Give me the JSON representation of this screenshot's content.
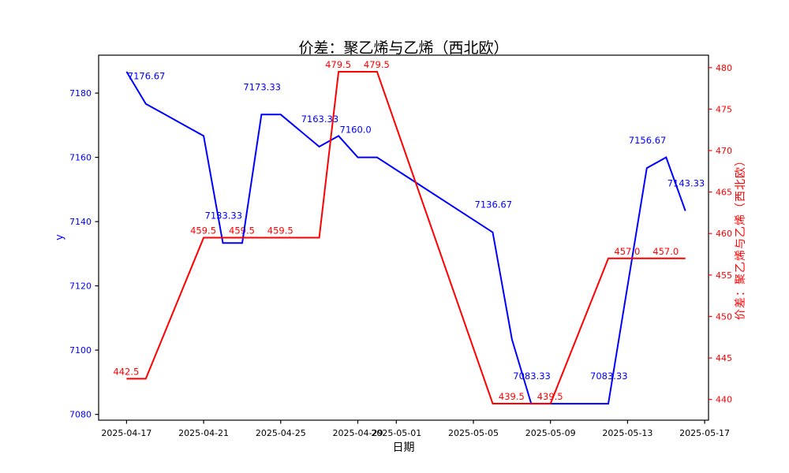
{
  "chart_data": {
    "type": "line",
    "title": "价差：聚乙烯与乙烯（西北欧）",
    "xlabel": "日期",
    "start_date": "2025-04-17",
    "x_axis": {
      "tick_labels": [
        "2025-04-17",
        "2025-04-21",
        "2025-04-25",
        "2025-04-29",
        "2025-05-01",
        "2025-05-05",
        "2025-05-09",
        "2025-05-13",
        "2025-05-17"
      ],
      "xlim_days": [
        -1.45,
        30.2
      ],
      "tick_color": "#000000",
      "label_color": "#000000"
    },
    "left_axis": {
      "label": "y",
      "ticks": [
        7080,
        7100,
        7120,
        7140,
        7160,
        7180
      ],
      "ylim": [
        7078.2,
        7191.8
      ],
      "label_color": "#0000ff",
      "tick_mark_color": "#000000"
    },
    "right_axis": {
      "label": "价差：聚乙烯与乙烯（西北欧）",
      "ticks": [
        440,
        445,
        450,
        455,
        460,
        465,
        470,
        475,
        480
      ],
      "ylim": [
        437.5,
        481.5
      ],
      "label_color": "#ff0000",
      "tick_mark_color": "#ff0000"
    },
    "grid": false,
    "legend": null,
    "series": [
      {
        "name": "y",
        "axis": "left",
        "color": "#0000ff",
        "line_width": 2,
        "points": [
          [
            "2025-04-17",
            7186.67
          ],
          [
            "2025-04-18",
            7176.67
          ],
          [
            "2025-04-19",
            7173.33
          ],
          [
            "2025-04-20",
            7170.0
          ],
          [
            "2025-04-21",
            7166.67
          ],
          [
            "2025-04-22",
            7133.33
          ],
          [
            "2025-04-23",
            7133.33
          ],
          [
            "2025-04-24",
            7173.33
          ],
          [
            "2025-04-25",
            7173.33
          ],
          [
            "2025-04-26",
            7168.33
          ],
          [
            "2025-04-27",
            7163.33
          ],
          [
            "2025-04-28",
            7166.67
          ],
          [
            "2025-04-29",
            7160.0
          ],
          [
            "2025-04-30",
            7160.0
          ],
          [
            "2025-05-06",
            7136.67
          ],
          [
            "2025-05-07",
            7103.33
          ],
          [
            "2025-05-08",
            7083.33
          ],
          [
            "2025-05-12",
            7083.33
          ],
          [
            "2025-05-14",
            7156.67
          ],
          [
            "2025-05-15",
            7160.0
          ],
          [
            "2025-05-16",
            7143.33
          ]
        ],
        "annotations": [
          {
            "date": "2025-04-18",
            "label": "7176.67"
          },
          {
            "date": "2025-04-22",
            "label": "7133.33"
          },
          {
            "date": "2025-04-24",
            "label": "7173.33"
          },
          {
            "date": "2025-04-27",
            "label": "7163.33"
          },
          {
            "date": "2025-04-29",
            "label": "7160.0"
          },
          {
            "date": "2025-05-06",
            "label": "7136.67"
          },
          {
            "date": "2025-05-08",
            "label": "7083.33"
          },
          {
            "date": "2025-05-12",
            "label": "7083.33"
          },
          {
            "date": "2025-05-14",
            "label": "7156.67"
          },
          {
            "date": "2025-05-16",
            "label": "7143.33"
          }
        ],
        "annotation_offset": [
          -23,
          -31
        ]
      },
      {
        "name": "价差：聚乙烯与乙烯（西北欧）",
        "axis": "right",
        "color": "#ff0000",
        "line_width": 2,
        "points": [
          [
            "2025-04-17",
            442.5
          ],
          [
            "2025-04-18",
            442.5
          ],
          [
            "2025-04-21",
            459.5
          ],
          [
            "2025-04-27",
            459.5
          ],
          [
            "2025-04-28",
            479.5
          ],
          [
            "2025-04-30",
            479.5
          ],
          [
            "2025-05-06",
            439.5
          ],
          [
            "2025-05-09",
            439.5
          ],
          [
            "2025-05-12",
            457.0
          ],
          [
            "2025-05-16",
            457.0
          ]
        ],
        "annotations": [
          {
            "date": "2025-04-17",
            "label": "442.5"
          },
          {
            "date": "2025-04-21",
            "label": "459.5"
          },
          {
            "date": "2025-04-23",
            "label": "459.5"
          },
          {
            "date": "2025-04-25",
            "label": "459.5"
          },
          {
            "date": "2025-04-28",
            "label": "479.5"
          },
          {
            "date": "2025-04-30",
            "label": "479.5"
          },
          {
            "date": "2025-05-07",
            "label": "439.5"
          },
          {
            "date": "2025-05-09",
            "label": "439.5"
          },
          {
            "date": "2025-05-13",
            "label": "457.0"
          },
          {
            "date": "2025-05-15",
            "label": "457.0"
          }
        ],
        "annotation_offset": [
          -17,
          -5
        ]
      }
    ]
  }
}
